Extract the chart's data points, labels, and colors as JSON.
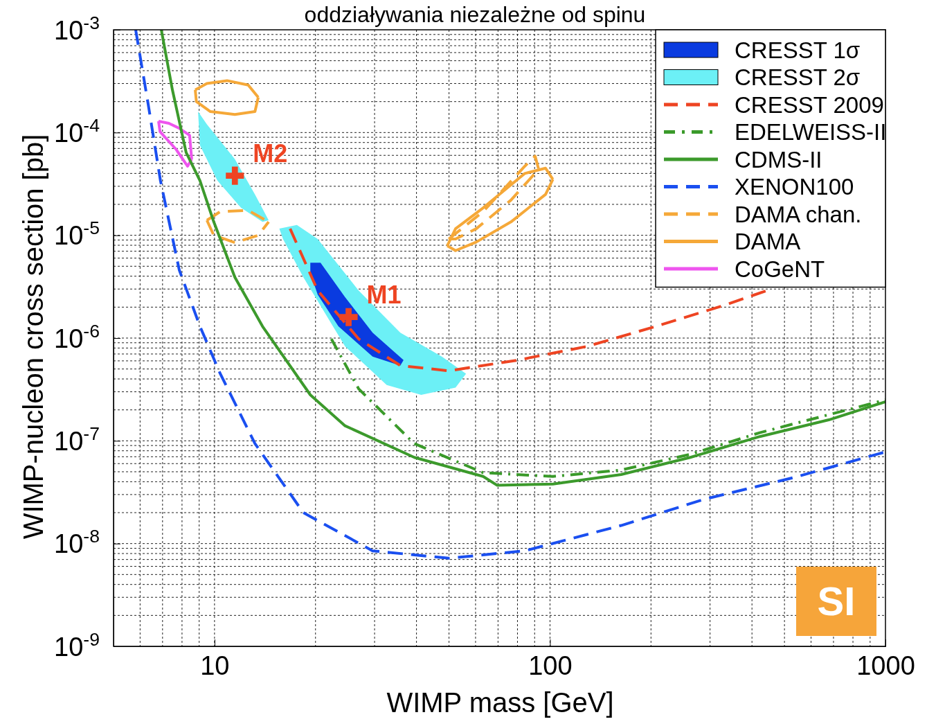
{
  "chart_data": {
    "type": "line",
    "title": "oddziaływania niezależne od spinu",
    "xlabel": "WIMP mass [GeV]",
    "ylabel": "WIMP-nucleon cross section [pb]",
    "log": "xy",
    "xlim": [
      5,
      1000
    ],
    "ylim": [
      1e-09,
      0.001
    ],
    "xticks": [
      10,
      100,
      1000
    ],
    "yticks": [
      {
        "value": 1e-09,
        "label": "10$^{-9}$"
      },
      {
        "value": 1e-08,
        "label": "10$^{-8}$"
      },
      {
        "value": 1e-07,
        "label": "10$^{-7}$"
      },
      {
        "value": 1e-06,
        "label": "10$^{-6}$"
      },
      {
        "value": 1e-05,
        "label": "10$^{-5}$"
      },
      {
        "value": 0.0001,
        "label": "10$^{-4}$"
      },
      {
        "value": 0.001,
        "label": "10$^{-3}$"
      }
    ],
    "grid": true,
    "legend": "top right",
    "series": [
      {
        "name": "CRESST 1σ",
        "type": "area",
        "color": "#0a3be0",
        "x": [
          19.3,
          20.7,
          24.5,
          29.6,
          36.6,
          35.8,
          29.6,
          23.4,
          20.3,
          19.3,
          19.3
        ],
        "values": [
          5.4e-06,
          5.4e-06,
          2.5e-06,
          1.13e-06,
          6.1e-07,
          5.4e-07,
          6.6e-07,
          1.3e-06,
          2.65e-06,
          4.3e-06,
          5.4e-06
        ]
      },
      {
        "name": "CRESST 2σ",
        "type": "area",
        "color": "#6cf0f6",
        "x": [
          8.93,
          9.49,
          11.5,
          13.2,
          14.5,
          13.9,
          12.0,
          10.2,
          9.05,
          8.93,
          null,
          15.6,
          17.6,
          20.3,
          26.9,
          35.8,
          47.6,
          56.2,
          52.3,
          41.3,
          32.6,
          24.5,
          18.4,
          16.0,
          15.6
        ],
        "values": [
          0.00016,
          0.00012,
          5.5e-05,
          2.5e-05,
          1.4e-05,
          1.35e-05,
          1.85e-05,
          3.4e-05,
          7.5e-05,
          0.00016,
          null,
          1.16e-05,
          1.26e-05,
          9.2e-06,
          2.9e-06,
          1.13e-06,
          6.6e-07,
          4.5e-07,
          3.3e-07,
          2.8e-07,
          3.5e-07,
          8.3e-07,
          3.9e-06,
          9.2e-06,
          1.16e-05
        ]
      },
      {
        "name": "CRESST 2009",
        "line_style": "dashed",
        "color": "#ee4422",
        "x": [
          16.8,
          20.3,
          26.9,
          35.8,
          49.9,
          80.2,
          129,
          207,
          333,
          443
        ],
        "values": [
          1.16e-05,
          2.9e-06,
          9.8e-07,
          5.4e-07,
          4.8e-07,
          6.1e-07,
          8.3e-07,
          1.3e-06,
          2.1e-06,
          2.9e-06
        ]
      },
      {
        "name": "EDELWEISS-II",
        "line_style": "dashdot",
        "color": "#3a9a2a",
        "x": [
          22.3,
          26.9,
          39.4,
          63.2,
          102,
          163,
          262,
          422,
          1000
        ],
        "values": [
          9.8e-07,
          3.2e-07,
          9.4e-08,
          4.9e-08,
          4.5e-08,
          5.2e-08,
          7.4e-08,
          1.2e-07,
          2.5e-07
        ]
      },
      {
        "name": "CDMS-II",
        "line_style": "solid",
        "color": "#3c9a2c",
        "x": [
          6.94,
          7.49,
          8.23,
          9.05,
          9.95,
          11.5,
          13.9,
          19.3,
          24.5,
          39.4,
          63.2,
          69.5,
          102,
          163,
          262,
          422,
          678,
          1000
        ],
        "values": [
          0.001,
          0.00026,
          6.4e-05,
          3.4e-05,
          1.35e-05,
          3.9e-06,
          1.3e-06,
          2.8e-07,
          1.4e-07,
          6.9e-08,
          4.5e-08,
          3.7e-08,
          3.8e-08,
          4.7e-08,
          6.9e-08,
          1.1e-07,
          1.6e-07,
          2.4e-07
        ]
      },
      {
        "name": "XENON100",
        "line_style": "dashed",
        "color": "#1a4ff0",
        "x": [
          5.82,
          6.34,
          6.9,
          7.85,
          9.05,
          10.4,
          13.2,
          18.4,
          29.6,
          49.9,
          84.1,
          163,
          288,
          534,
          1000
        ],
        "values": [
          0.001,
          0.00019,
          3.4e-05,
          4.6e-06,
          1.3e-06,
          4.5e-07,
          9.4e-08,
          2e-08,
          8.5e-09,
          7.2e-09,
          8.5e-09,
          1.5e-08,
          2.7e-08,
          4.4e-08,
          7.8e-08
        ]
      },
      {
        "name": "DAMA chan.",
        "line_style": "dashed",
        "color": "#f5a838",
        "x": [
          9.49,
          10.4,
          12.6,
          14.5
        ],
        "values": [
          1.4e-05,
          1.7e-05,
          1.75e-05,
          1.35e-05
        ]
      },
      {
        "line_style": "dashed",
        "color": "#f5a838",
        "x": [
          9.49,
          9.95,
          11.5,
          13.5,
          14.5
        ],
        "values": [
          1.4e-05,
          1e-05,
          8.5e-06,
          1e-05,
          1.35e-05
        ]
      },
      {
        "line_style": "dashed",
        "color": "#f5a838",
        "x": [
          49.9,
          63.2,
          84.1,
          90.3,
          92.5
        ],
        "values": [
          9.2e-06,
          1.7e-05,
          4.7e-05,
          5.9e-05,
          4.4e-05
        ]
      },
      {
        "line_style": "dashed",
        "color": "#f5a838",
        "x": [
          49.9,
          52.3,
          60.3,
          76.5,
          92.5
        ],
        "values": [
          9.2e-06,
          9.2e-06,
          1.16e-05,
          2.2e-05,
          4.4e-05
        ]
      },
      {
        "name": "DAMA",
        "line_style": "solid",
        "color": "#f5a838",
        "x": [
          8.76,
          9.49,
          10.9,
          12.6,
          13.5
        ],
        "values": [
          0.00026,
          0.0003,
          0.00032,
          0.00029,
          0.00022
        ]
      },
      {
        "line_style": "solid",
        "color": "#f5a838",
        "x": [
          8.76,
          8.83,
          9.72,
          11.5,
          13.2,
          13.5
        ],
        "values": [
          0.00026,
          0.0002,
          0.00016,
          0.00015,
          0.00016,
          0.00022
        ]
      },
      {
        "line_style": "solid",
        "color": "#f5a838",
        "x": [
          49.4,
          52.3,
          63.2,
          84.1,
          97,
          102
        ],
        "values": [
          7.9e-06,
          1.16e-05,
          1.85e-05,
          4e-05,
          4.5e-05,
          3.5e-05
        ]
      },
      {
        "line_style": "solid",
        "color": "#f5a838",
        "x": [
          49.4,
          52.3,
          60.3,
          76.5,
          97,
          102
        ],
        "values": [
          7.9e-06,
          7.1e-06,
          8.6e-06,
          1.35e-05,
          2.5e-05,
          3.5e-05
        ]
      },
      {
        "name": "CoGeNT",
        "line_style": "solid",
        "color": "#ee55ee",
        "x": [
          6.81,
          6.88,
          7.67,
          8.31,
          8.55
        ],
        "values": [
          0.000129,
          0.000102,
          6.9e-05,
          4.7e-05,
          5.5e-05
        ]
      },
      {
        "line_style": "solid",
        "color": "#ee55ee",
        "x": [
          6.81,
          7.31,
          7.85,
          8.43,
          8.55
        ],
        "values": [
          0.000129,
          0.000123,
          0.00011,
          9.4e-05,
          5.5e-05
        ]
      },
      {
        "type": "scatter",
        "marker": "cross",
        "color": "#ee4422",
        "x": [
          11.5,
          25.1
        ],
        "values": [
          3.8e-05,
          1.6e-06
        ]
      }
    ],
    "annotations": [
      {
        "text": "M2",
        "x": 11.5,
        "y": 3.8e-05
      },
      {
        "text": "M1",
        "x": 25.1,
        "y": 1.6e-06
      },
      "SI"
    ]
  }
}
